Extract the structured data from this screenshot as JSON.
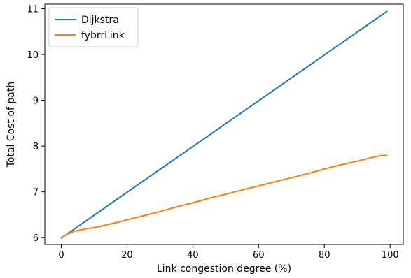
{
  "chart_data": {
    "type": "line",
    "title": "",
    "xlabel": "Link congestion degree (%)",
    "ylabel": "Total Cost of path",
    "xlim": [
      -5,
      104
    ],
    "ylim": [
      5.85,
      11.1
    ],
    "xticks": [
      0,
      20,
      40,
      60,
      80,
      100
    ],
    "yticks": [
      6,
      7,
      8,
      9,
      10,
      11
    ],
    "grid": false,
    "legend": "top-left",
    "series": [
      {
        "name": "Dijkstra",
        "color": "#1f77b4",
        "x": [
          0,
          99
        ],
        "y": [
          5.99,
          10.94
        ]
      },
      {
        "name": "fybrrLink",
        "color": "#ff7f0e",
        "x": [
          0,
          2,
          4,
          6,
          8,
          10,
          12,
          15,
          18,
          20,
          25,
          30,
          35,
          40,
          45,
          50,
          55,
          60,
          65,
          70,
          75,
          80,
          85,
          90,
          95,
          97,
          99
        ],
        "y": [
          6.0,
          6.08,
          6.14,
          6.17,
          6.2,
          6.22,
          6.25,
          6.3,
          6.35,
          6.39,
          6.48,
          6.57,
          6.67,
          6.76,
          6.86,
          6.95,
          7.04,
          7.13,
          7.22,
          7.31,
          7.4,
          7.5,
          7.59,
          7.67,
          7.76,
          7.79,
          7.8
        ]
      }
    ]
  }
}
